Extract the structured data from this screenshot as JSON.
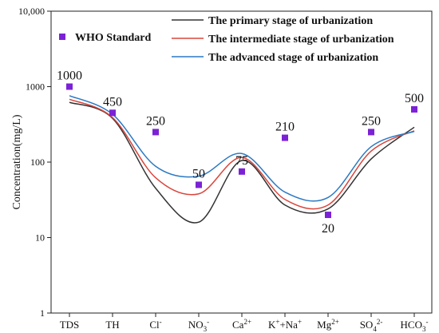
{
  "chart_data": {
    "type": "line",
    "scale": "log",
    "ylim": [
      1,
      10000
    ],
    "yticks": [
      "1",
      "10",
      "100",
      "1000",
      "10,000"
    ],
    "ylabel": "Concentration(mg/L)",
    "categories": [
      {
        "base": "TDS",
        "sup": "",
        "sub": "",
        "charge": ""
      },
      {
        "base": "TH",
        "sup": "",
        "sub": "",
        "charge": ""
      },
      {
        "base": "Cl",
        "sup": "-",
        "sub": "",
        "charge": ""
      },
      {
        "base": "NO",
        "sup": "",
        "sub": "3",
        "charge": "-"
      },
      {
        "base": "Ca",
        "sup": "2+",
        "sub": "",
        "charge": ""
      },
      {
        "base": "K",
        "sup": "+",
        "sub": "",
        "charge": "",
        "extra_base": "+Na",
        "extra_sup": "+"
      },
      {
        "base": "Mg",
        "sup": "2+",
        "sub": "",
        "charge": ""
      },
      {
        "base": "SO",
        "sup": "",
        "sub": "4",
        "charge": "2-"
      },
      {
        "base": "HCO",
        "sup": "",
        "sub": "3",
        "charge": "-"
      }
    ],
    "legend_position": "top-right",
    "series": [
      {
        "name": "The primary stage of urbanization",
        "color": "#333333",
        "values": [
          620,
          380,
          45,
          16,
          105,
          27,
          24,
          110,
          290
        ]
      },
      {
        "name": "The intermediate stage of urbanization",
        "color": "#d9463c",
        "values": [
          680,
          390,
          62,
          38,
          115,
          32,
          27,
          140,
          260
        ]
      },
      {
        "name": "The advanced stage of urbanization",
        "color": "#2a79c3",
        "values": [
          760,
          430,
          88,
          65,
          130,
          40,
          34,
          160,
          255
        ]
      }
    ],
    "who_standard": {
      "name": "WHO  Standard",
      "color": "#7b22d6",
      "values": [
        1000,
        450,
        250,
        50,
        75,
        210,
        20,
        250,
        500
      ],
      "labels": [
        "1000",
        "450",
        "250",
        "50",
        "75",
        "210",
        "20",
        "250",
        "500"
      ]
    }
  }
}
